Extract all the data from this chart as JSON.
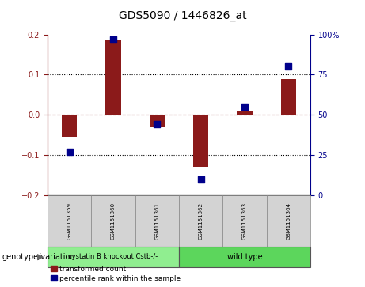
{
  "title": "GDS5090 / 1446826_at",
  "samples": [
    "GSM1151359",
    "GSM1151360",
    "GSM1151361",
    "GSM1151362",
    "GSM1151363",
    "GSM1151364"
  ],
  "red_values": [
    -0.055,
    0.185,
    -0.03,
    -0.13,
    0.01,
    0.088
  ],
  "blue_values": [
    27,
    97,
    44,
    10,
    55,
    80
  ],
  "ylim_left": [
    -0.2,
    0.2
  ],
  "ylim_right": [
    0,
    100
  ],
  "yticks_left": [
    -0.2,
    -0.1,
    0.0,
    0.1,
    0.2
  ],
  "yticks_right": [
    0,
    25,
    50,
    75,
    100
  ],
  "ytick_labels_right": [
    "0",
    "25",
    "50",
    "75",
    "100%"
  ],
  "hline_dotted": [
    0.1,
    -0.1
  ],
  "red_hline": 0.0,
  "group1_label": "cystatin B knockout Cstb-/-",
  "group2_label": "wild type",
  "group1_color": "#90EE90",
  "group2_color": "#5CD65C",
  "genotype_label": "genotype/variation",
  "legend_red": "transformed count",
  "legend_blue": "percentile rank within the sample",
  "red_color": "#8B1A1A",
  "blue_color": "#00008B",
  "bar_width": 0.35,
  "dot_size": 30,
  "group1_indices": [
    0,
    1,
    2
  ],
  "group2_indices": [
    3,
    4,
    5
  ],
  "title_fontsize": 10,
  "tick_fontsize": 7,
  "sample_fontsize": 5,
  "legend_fontsize": 6.5,
  "genotype_fontsize": 7,
  "group_label_fontsize": 6
}
